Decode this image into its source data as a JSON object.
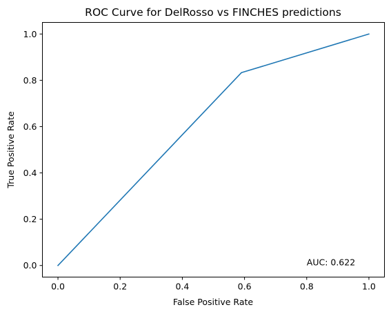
{
  "chart_data": {
    "type": "line",
    "title": "ROC Curve for DelRosso vs FINCHES predictions",
    "xlabel": "False Positive Rate",
    "ylabel": "True Positive Rate",
    "xlim": [
      -0.05,
      1.05
    ],
    "ylim": [
      -0.05,
      1.05
    ],
    "xticks": [
      "0.0",
      "0.2",
      "0.4",
      "0.6",
      "0.8",
      "1.0"
    ],
    "yticks": [
      "0.0",
      "0.2",
      "0.4",
      "0.6",
      "0.8",
      "1.0"
    ],
    "grid": false,
    "series": [
      {
        "color": "#1f77b4",
        "x": [
          0.0,
          0.59,
          1.0
        ],
        "y": [
          0.0,
          0.833,
          1.0
        ]
      }
    ],
    "annotations": [
      {
        "text": "AUC: 0.622",
        "x": 0.8,
        "y": 0.0
      }
    ]
  }
}
